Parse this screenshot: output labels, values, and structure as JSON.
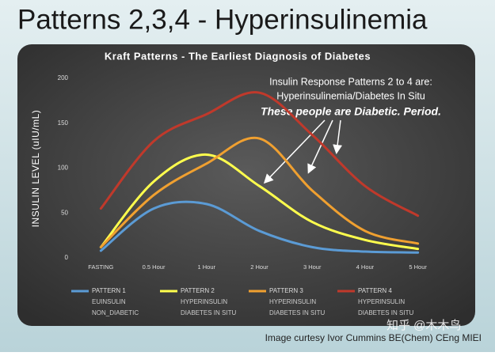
{
  "slide_title": "Patterns 2,3,4 - Hyperinsulinemia",
  "chart_data": {
    "type": "line",
    "title": "Kraft Patterns - The Earliest Diagnosis of Diabetes",
    "y_label": "INSULIN LEVEL (uIU/mL)",
    "annotation": [
      "Insulin Response Patterns 2 to 4 are:",
      "Hyperinsulinemia/Diabetes In Situ",
      "These people are Diabetic. Period."
    ],
    "categories": [
      "FASTING",
      "0.5 Hour",
      "1 Hour",
      "2 Hour",
      "3 Hour",
      "4 Hour",
      "5 Hour"
    ],
    "series": [
      {
        "name": "PATTERN 1",
        "description": [
          "EUINSULIN",
          "NON_DIABETIC"
        ],
        "color": "#5b9bd5",
        "values": [
          8,
          55,
          60,
          30,
          12,
          7,
          6
        ]
      },
      {
        "name": "PATTERN 2",
        "description": [
          "HYPERINSULIN",
          "DIABETES IN SITU"
        ],
        "color": "#ffff4d",
        "values": [
          12,
          85,
          115,
          80,
          40,
          20,
          10
        ]
      },
      {
        "name": "PATTERN 3",
        "description": [
          "HYPERINSULIN",
          "DIABETES IN SITU"
        ],
        "color": "#f0a030",
        "values": [
          12,
          70,
          105,
          133,
          75,
          30,
          16
        ]
      },
      {
        "name": "PATTERN 4",
        "description": [
          "HYPERINSULIN",
          "DIABETES IN SITU"
        ],
        "color": "#c0392b",
        "values": [
          55,
          130,
          160,
          184,
          137,
          80,
          47
        ]
      }
    ],
    "ylim": [
      0,
      200
    ],
    "yticks": [
      0,
      50,
      100,
      150,
      200
    ],
    "grid": false
  },
  "credit": "Image curtesy Ivor Cummins BE(Chem) CEng MIEI",
  "watermark": "知乎 @木木鸟"
}
